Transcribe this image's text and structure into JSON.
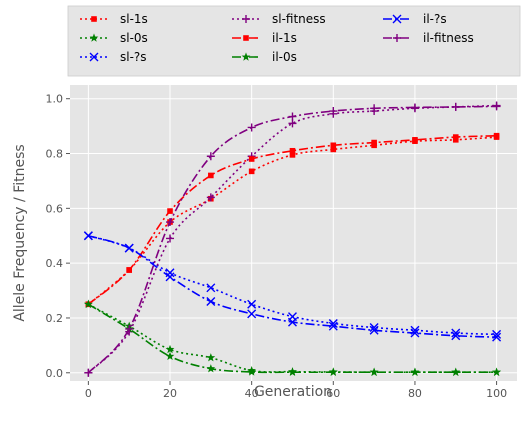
{
  "chart_data": {
    "type": "line",
    "xlabel": "Generation",
    "ylabel": "Allele Frequency / Fitness",
    "xlim": [
      -4.5,
      105
    ],
    "ylim": [
      -0.03,
      1.05
    ],
    "xticks": [
      0,
      20,
      40,
      60,
      80,
      100
    ],
    "yticks": [
      0.0,
      0.2,
      0.4,
      0.6,
      0.8,
      1.0
    ],
    "xtick_labels": [
      "0",
      "20",
      "40",
      "60",
      "80",
      "100"
    ],
    "ytick_labels": [
      "0.0",
      "0.2",
      "0.4",
      "0.6",
      "0.8",
      "1.0"
    ],
    "grid": true,
    "legend_position": "top",
    "legend_columns": 3,
    "x": [
      0,
      10,
      20,
      30,
      40,
      50,
      60,
      70,
      80,
      90,
      100
    ],
    "series": [
      {
        "name": "sl-1s",
        "color": "#ff0000",
        "dash": "dotted",
        "marker": "square",
        "values": [
          0.25,
          0.375,
          0.55,
          0.635,
          0.735,
          0.795,
          0.815,
          0.83,
          0.845,
          0.85,
          0.86
        ]
      },
      {
        "name": "sl-0s",
        "color": "#008000",
        "dash": "dotted",
        "marker": "star",
        "values": [
          0.25,
          0.17,
          0.085,
          0.055,
          0.008,
          0.004,
          0.003,
          0.002,
          0.002,
          0.002,
          0.002
        ]
      },
      {
        "name": "sl-?s",
        "color": "#0000ff",
        "dash": "dotted",
        "marker": "x",
        "values": [
          0.5,
          0.455,
          0.365,
          0.31,
          0.25,
          0.205,
          0.18,
          0.165,
          0.155,
          0.145,
          0.14
        ]
      },
      {
        "name": "sl-fitness",
        "color": "#800080",
        "dash": "dotted",
        "marker": "plus",
        "values": [
          0.0,
          0.15,
          0.49,
          0.64,
          0.79,
          0.91,
          0.945,
          0.955,
          0.965,
          0.97,
          0.975
        ]
      },
      {
        "name": "il-1s",
        "color": "#ff0000",
        "dash": "dashdot",
        "marker": "square",
        "values": [
          0.25,
          0.375,
          0.59,
          0.72,
          0.78,
          0.81,
          0.83,
          0.84,
          0.85,
          0.86,
          0.865
        ]
      },
      {
        "name": "il-0s",
        "color": "#008000",
        "dash": "dashdot",
        "marker": "star",
        "values": [
          0.25,
          0.16,
          0.06,
          0.015,
          0.003,
          0.002,
          0.002,
          0.002,
          0.002,
          0.002,
          0.002
        ]
      },
      {
        "name": "il-?s",
        "color": "#0000ff",
        "dash": "dashdot",
        "marker": "x",
        "values": [
          0.5,
          0.455,
          0.35,
          0.26,
          0.215,
          0.185,
          0.17,
          0.155,
          0.145,
          0.135,
          0.13
        ]
      },
      {
        "name": "il-fitness",
        "color": "#800080",
        "dash": "dashdot",
        "marker": "plus",
        "values": [
          0.0,
          0.16,
          0.55,
          0.79,
          0.895,
          0.935,
          0.955,
          0.965,
          0.968,
          0.97,
          0.972
        ]
      }
    ]
  }
}
